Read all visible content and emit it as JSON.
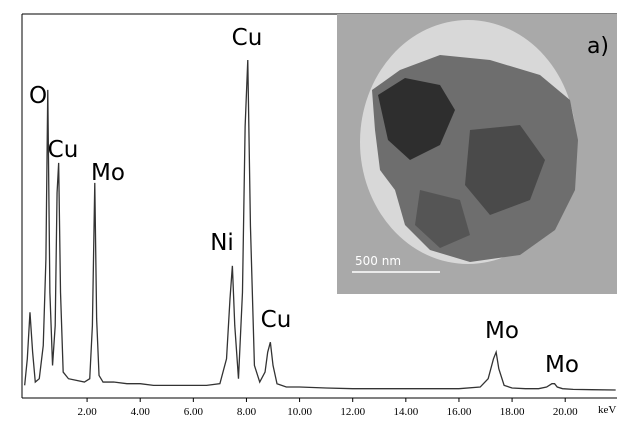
{
  "chart_data": {
    "type": "line",
    "x_unit_label": "keV",
    "annotations": [
      "O",
      "Cu",
      "Mo",
      "Ni",
      "Cu",
      "Cu",
      "Mo",
      "Mo"
    ],
    "inset": {
      "label": "a)",
      "scale_bar": "500 nm"
    },
    "xlim": [
      -0.45,
      21.95
    ],
    "ylim": [
      0,
      100
    ],
    "xticks": [
      {
        "value": 2,
        "label": "2.00"
      },
      {
        "value": 4,
        "label": "4.00"
      },
      {
        "value": 6,
        "label": "6.00"
      },
      {
        "value": 8,
        "label": "8.00"
      },
      {
        "value": 10,
        "label": "10.00"
      },
      {
        "value": 12,
        "label": "12.00"
      },
      {
        "value": 14,
        "label": "14.00"
      },
      {
        "value": 16,
        "label": "16.00"
      },
      {
        "value": 18,
        "label": "18.00"
      },
      {
        "value": 20,
        "label": "20.00"
      }
    ],
    "series": [
      {
        "color": "#333333",
        "x": [
          -0.35,
          -0.25,
          -0.15,
          -0.05,
          0.05,
          0.2,
          0.35,
          0.45,
          0.52,
          0.6,
          0.7,
          0.8,
          0.87,
          0.93,
          1.0,
          1.1,
          1.3,
          1.6,
          1.9,
          2.1,
          2.2,
          2.29,
          2.36,
          2.45,
          2.6,
          3.0,
          3.5,
          4.0,
          4.5,
          5.0,
          5.5,
          6.0,
          6.5,
          7.0,
          7.25,
          7.38,
          7.47,
          7.56,
          7.7,
          7.85,
          7.95,
          8.05,
          8.15,
          8.3,
          8.5,
          8.7,
          8.8,
          8.9,
          9.0,
          9.15,
          9.5,
          10,
          11,
          12,
          13,
          14,
          15,
          16,
          16.8,
          17.1,
          17.3,
          17.4,
          17.5,
          17.7,
          18,
          18.5,
          19,
          19.3,
          19.5,
          19.6,
          19.7,
          19.9,
          20.3,
          21,
          21.9
        ],
        "values": [
          2,
          10,
          24,
          12,
          3,
          4,
          14,
          40,
          91,
          30,
          8,
          20,
          60,
          69,
          30,
          6,
          4,
          3.5,
          3,
          4,
          20,
          63,
          22,
          5,
          3,
          3,
          2.5,
          2.5,
          2,
          2,
          2,
          2,
          2,
          2.5,
          10,
          28,
          38,
          20,
          4,
          30,
          80,
          100,
          50,
          8,
          3,
          6,
          12,
          15,
          8,
          2.5,
          1.5,
          1.5,
          1.2,
          1,
          1,
          1,
          1,
          1,
          1.5,
          4,
          10,
          12,
          7,
          2,
          1.2,
          1,
          1,
          1.5,
          2.5,
          2.5,
          1.5,
          1,
          0.8,
          0.7,
          0.6
        ]
      }
    ]
  }
}
